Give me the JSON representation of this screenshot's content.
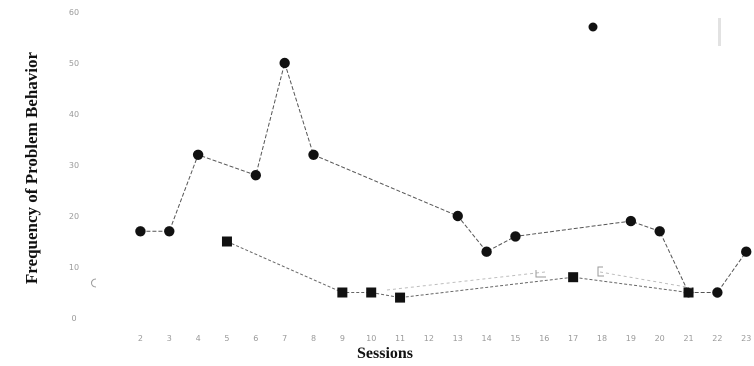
{
  "chart_data": {
    "type": "line",
    "title": "",
    "xlabel": "Sessions",
    "ylabel": "Frequency of Problem Behavior",
    "x_ticks": [
      2,
      3,
      4,
      5,
      6,
      7,
      8,
      9,
      10,
      11,
      12,
      13,
      14,
      15,
      16,
      17,
      18,
      19,
      20,
      21,
      22,
      23
    ],
    "y_ticks": [
      0,
      10,
      20,
      30,
      40,
      50,
      60
    ],
    "ylim": [
      0,
      60
    ],
    "xlim": [
      1.5,
      23.2
    ],
    "grid": false,
    "legend_position": "top-right",
    "legend_entries": [],
    "series": [
      {
        "marker": "circle",
        "points": [
          [
            2,
            17
          ],
          [
            3,
            17
          ],
          [
            4,
            32
          ],
          [
            6,
            28
          ],
          [
            7,
            50
          ],
          [
            8,
            32
          ],
          [
            13,
            20
          ],
          [
            14,
            13
          ],
          [
            15,
            16
          ],
          [
            19,
            19
          ],
          [
            20,
            17
          ],
          [
            21,
            5
          ],
          [
            22,
            5
          ],
          [
            23,
            13
          ]
        ]
      },
      {
        "marker": "square",
        "points": [
          [
            5,
            15
          ],
          [
            9,
            5
          ],
          [
            10,
            5
          ],
          [
            11,
            4
          ],
          [
            17,
            8
          ],
          [
            21,
            5
          ]
        ]
      }
    ]
  }
}
